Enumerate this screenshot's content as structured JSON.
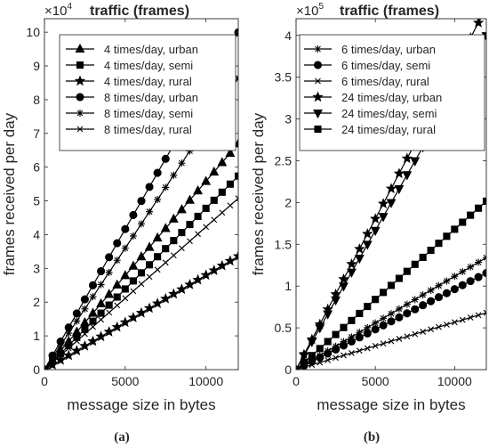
{
  "chart_data": [
    {
      "type": "line",
      "title": "traffic (frames)",
      "exponent_label": "×10⁴",
      "exponent_base": "×10",
      "exponent_power": "4",
      "xlabel": "message size in bytes",
      "ylabel": "frames received per day",
      "panel_label": "(a)",
      "xlim": [
        0,
        12000
      ],
      "ylim": [
        0,
        10.4
      ],
      "xticks": [
        0,
        5000,
        10000
      ],
      "xtick_labels": [
        "0",
        "5000",
        "10000"
      ],
      "yticks": [
        0,
        1,
        2,
        3,
        4,
        5,
        6,
        7,
        8,
        9,
        10
      ],
      "ytick_labels": [
        "0",
        "1",
        "2",
        "3",
        "4",
        "5",
        "6",
        "7",
        "8",
        "9",
        "10"
      ],
      "y_scale_note": "values in units of 10^4 frames",
      "legend_position": "top-right",
      "x": [
        0,
        500,
        1000,
        1500,
        2000,
        2500,
        3000,
        3500,
        4000,
        4500,
        5000,
        5500,
        6000,
        6500,
        7000,
        7500,
        8000,
        8500,
        9000,
        9500,
        10000,
        10500,
        11000,
        11500,
        12000
      ],
      "series": [
        {
          "name": "4 times/day, urban",
          "marker": "triangle",
          "slope": 0.000558
        },
        {
          "name": "4 times/day, semi",
          "marker": "square",
          "slope": 0.000478
        },
        {
          "name": "4 times/day, rural",
          "marker": "star",
          "slope": 0.00028
        },
        {
          "name": "8 times/day, urban",
          "marker": "circle",
          "slope": 0.000833
        },
        {
          "name": "8 times/day, semi",
          "marker": "asterisk",
          "slope": 0.00072
        },
        {
          "name": "8 times/day, rural",
          "marker": "x",
          "slope": 0.000423
        }
      ]
    },
    {
      "type": "line",
      "title": "traffic (frames)",
      "exponent_label": "×10⁵",
      "exponent_base": "×10",
      "exponent_power": "5",
      "xlabel": "message size in bytes",
      "ylabel": "frames received per day",
      "panel_label": "(b)",
      "xlim": [
        0,
        12000
      ],
      "ylim": [
        0,
        4.2
      ],
      "xticks": [
        0,
        5000,
        10000
      ],
      "xtick_labels": [
        "0",
        "5000",
        "10000"
      ],
      "yticks": [
        0,
        0.5,
        1,
        1.5,
        2,
        2.5,
        3,
        3.5,
        4
      ],
      "ytick_labels": [
        "0",
        "0.5",
        "1",
        "1.5",
        "2",
        "2.5",
        "3",
        "3.5",
        "4"
      ],
      "y_scale_note": "values in units of 10^5 frames",
      "legend_position": "top-right",
      "x": [
        0,
        500,
        1000,
        1500,
        2000,
        2500,
        3000,
        3500,
        4000,
        4500,
        5000,
        5500,
        6000,
        6500,
        7000,
        7500,
        8000,
        8500,
        9000,
        9500,
        10000,
        10500,
        11000,
        11500,
        12000
      ],
      "series": [
        {
          "name": "6 times/day, urban",
          "marker": "asterisk",
          "slope": 0.0001117
        },
        {
          "name": "6 times/day, semi",
          "marker": "circle",
          "slope": 9.63e-05
        },
        {
          "name": "6 times/day, rural",
          "marker": "x",
          "slope": 5.67e-05
        },
        {
          "name": "24 times/day, urban",
          "marker": "star",
          "slope": 0.000361
        },
        {
          "name": "24 times/day, semi",
          "marker": "triangle-down",
          "slope": 0.000333
        },
        {
          "name": "24 times/day, rural",
          "marker": "square",
          "slope": 0.000168
        }
      ]
    }
  ]
}
